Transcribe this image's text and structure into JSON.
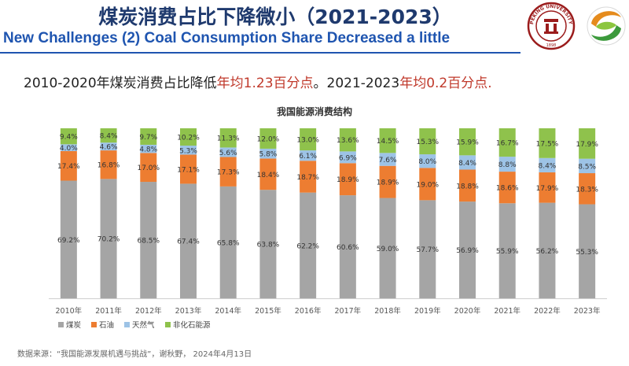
{
  "header": {
    "title_zh": "煤炭消费占比下降微小（2021-2023）",
    "title_en": "New Challenges (2) Coal Consumption Share Decreased a little",
    "headline_parts": [
      {
        "text": "2010-2020年煤炭消费占比降低",
        "highlight": false
      },
      {
        "text": "年均1.23百分点",
        "highlight": true
      },
      {
        "text": "。2021-2023",
        "highlight": false
      },
      {
        "text": "年均0.2百分点.",
        "highlight": true
      }
    ]
  },
  "logos": {
    "pku_name": "PEKING UNIVERSITY",
    "pku_year": "1898"
  },
  "chart_data": {
    "type": "bar",
    "stacked": true,
    "percent": true,
    "title": "我国能源消费结构",
    "categories": [
      "2010年",
      "2011年",
      "2012年",
      "2013年",
      "2014年",
      "2015年",
      "2016年",
      "2017年",
      "2018年",
      "2019年",
      "2020年",
      "2021年",
      "2022年",
      "2023年"
    ],
    "series": [
      {
        "name": "煤炭",
        "color": "#a5a5a5",
        "values": [
          69.2,
          70.2,
          68.5,
          67.4,
          65.8,
          63.8,
          62.2,
          60.6,
          59.0,
          57.7,
          56.9,
          55.9,
          56.2,
          55.3
        ]
      },
      {
        "name": "石油",
        "color": "#ed7d31",
        "values": [
          17.4,
          16.8,
          17.0,
          17.1,
          17.3,
          18.4,
          18.7,
          18.9,
          18.9,
          19.0,
          18.8,
          18.6,
          17.9,
          18.3
        ]
      },
      {
        "name": "天然气",
        "color": "#9dc3e6",
        "values": [
          4.0,
          4.6,
          4.8,
          5.3,
          5.6,
          5.8,
          6.1,
          6.9,
          7.6,
          8.0,
          8.4,
          8.8,
          8.4,
          8.5
        ]
      },
      {
        "name": "非化石能源",
        "color": "#8fc24c",
        "values": [
          9.4,
          8.4,
          9.7,
          10.2,
          11.3,
          12.0,
          13.0,
          13.6,
          14.5,
          15.3,
          15.9,
          16.7,
          17.5,
          17.9
        ]
      }
    ],
    "ylim": [
      0,
      100
    ],
    "legend": "bottom-left",
    "label_suffix": "%"
  },
  "source": {
    "text": "数据来源：“我国能源发展机遇与挑战”，谢秋野，  2024年4月13日"
  }
}
